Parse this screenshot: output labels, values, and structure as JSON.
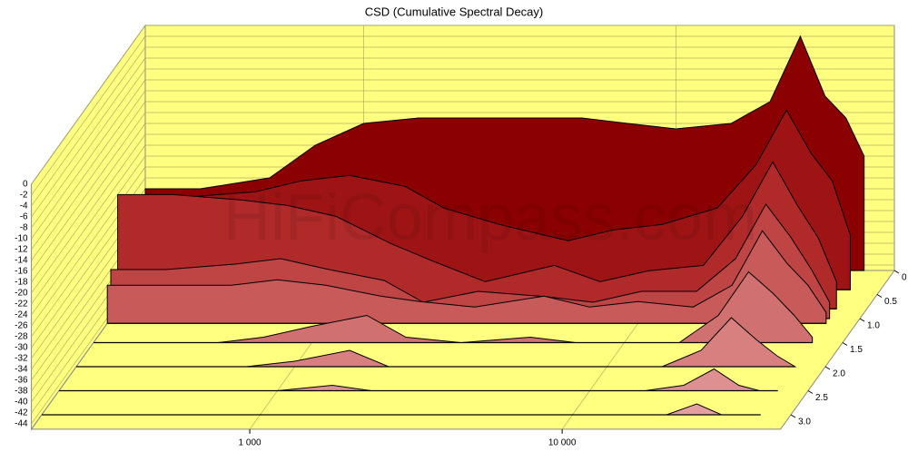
{
  "chart_data": {
    "type": "waterfall",
    "title": "CSD (Cumulative Spectral Decay)",
    "watermark": "HiFiCompass.com",
    "x": [
      200,
      300,
      500,
      700,
      1000,
      1500,
      2000,
      3000,
      5000,
      7000,
      10000,
      15000,
      20000,
      25000,
      30000,
      35000,
      40000
    ],
    "xlim": [
      200,
      50000
    ],
    "xticks": [
      {
        "value": 1000,
        "label": "1 000"
      },
      {
        "value": 10000,
        "label": "10 000"
      }
    ],
    "ylim": [
      -45,
      0
    ],
    "yticks": [
      0,
      -2,
      -4,
      -6,
      -8,
      -10,
      -12,
      -14,
      -16,
      -18,
      -20,
      -22,
      -24,
      -26,
      -28,
      -30,
      -32,
      -34,
      -36,
      -38,
      -40,
      -42,
      -44
    ],
    "zlim": [
      0,
      3.3
    ],
    "zticks": [
      0,
      0.5,
      {
        "value": 1,
        "label": "1.0"
      },
      1.5,
      {
        "value": 2,
        "label": "2.0"
      },
      2.5,
      {
        "value": 3,
        "label": "3.0"
      }
    ],
    "grid": true,
    "series": [
      {
        "time": 0,
        "color": "#8b0000",
        "values": [
          -30,
          -30,
          -28,
          -22,
          -18,
          -17,
          -17,
          -17,
          -17,
          -18,
          -19,
          -18,
          -14,
          -2,
          -13,
          -17,
          -24
        ]
      },
      {
        "time": 0.4,
        "color": "#9e1414",
        "values": [
          -28,
          -28,
          -27,
          -25,
          -24,
          -26,
          -30,
          -33,
          -36,
          -34,
          -33,
          -30,
          -22,
          -12,
          -20,
          -25,
          -35
        ]
      },
      {
        "time": 0.8,
        "color": "#b02a2a",
        "values": [
          -24,
          -24,
          -25,
          -26,
          -28,
          -33,
          -36,
          -40,
          -37,
          -40,
          -38,
          -37,
          -28,
          -18,
          -26,
          -32,
          -40
        ]
      },
      {
        "time": 1,
        "color": "#bf4444",
        "values": [
          -36,
          -36,
          -35,
          -34,
          -36,
          -38,
          -42,
          -40,
          -41,
          -42,
          -40,
          -40,
          -34,
          -24,
          -30,
          -36,
          -42
        ]
      },
      {
        "time": 1.1,
        "color": "#c85a5a",
        "values": [
          -38,
          -38,
          -38,
          -37,
          -38,
          -40,
          -41,
          -42,
          -40,
          -42,
          -41,
          -42,
          -38,
          -28,
          -34,
          -38,
          -43
        ]
      },
      {
        "time": 1.5,
        "color": "#d07070",
        "values": [
          -45,
          -45,
          -45,
          -44,
          -42,
          -40,
          -44,
          -45,
          -44,
          -45,
          -45,
          -45,
          -40,
          -32,
          -36,
          -40,
          -44
        ]
      },
      {
        "time": 2,
        "color": "#d88080",
        "values": [
          -45,
          -45,
          -45,
          -45,
          -44,
          -42,
          -45,
          -45,
          -45,
          -45,
          -45,
          -45,
          -42,
          -36,
          -40,
          -43,
          -45
        ]
      },
      {
        "time": 2.5,
        "color": "#de9090",
        "values": [
          -45,
          -45,
          -45,
          -45,
          -45,
          -44,
          -45,
          -45,
          -45,
          -45,
          -45,
          -45,
          -44,
          -41,
          -44,
          -45,
          -45
        ]
      },
      {
        "time": 3,
        "color": "#e4a0a0",
        "values": [
          -45,
          -45,
          -45,
          -45,
          -45,
          -45,
          -45,
          -45,
          -45,
          -45,
          -45,
          -45,
          -45,
          -43,
          -45,
          -45,
          -45
        ]
      }
    ]
  }
}
